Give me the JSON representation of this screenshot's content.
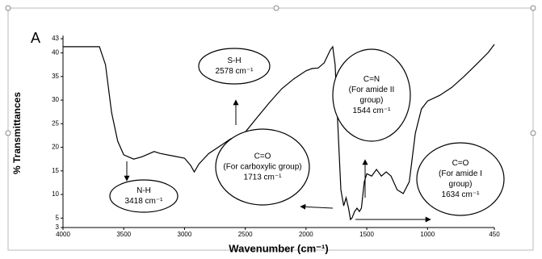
{
  "chart_data": {
    "type": "line",
    "panel_label": "A",
    "ylabel": "% Transmittances",
    "xlabel": "Wavenumber (cm⁻¹)",
    "xlim": [
      4000,
      450
    ],
    "ylim": [
      3,
      43
    ],
    "xticks": [
      4000,
      3500,
      3000,
      2500,
      2000,
      1500,
      1000,
      450
    ],
    "yticks": [
      3,
      5,
      10,
      15,
      20,
      25,
      30,
      35,
      40,
      43
    ],
    "color": "#000000",
    "x": [
      4000,
      3700,
      3650,
      3600,
      3550,
      3500,
      3418,
      3350,
      3250,
      3200,
      3100,
      3000,
      2950,
      2920,
      2880,
      2800,
      2700,
      2620,
      2578,
      2550,
      2500,
      2400,
      2300,
      2200,
      2100,
      2000,
      1950,
      1900,
      1850,
      1800,
      1780,
      1760,
      1740,
      1713,
      1690,
      1670,
      1650,
      1634,
      1620,
      1600,
      1580,
      1560,
      1544,
      1520,
      1500,
      1460,
      1420,
      1380,
      1340,
      1300,
      1250,
      1200,
      1150,
      1100,
      1050,
      1000,
      900,
      800,
      700,
      600,
      500,
      450
    ],
    "values": [
      41.3,
      41.3,
      37.5,
      27.3,
      21.3,
      18.4,
      17.5,
      18.0,
      19.1,
      18.7,
      18.2,
      17.7,
      16.2,
      14.8,
      16.5,
      18.7,
      20.4,
      21.8,
      22.1,
      21.8,
      23.2,
      26.4,
      29.5,
      32.4,
      34.5,
      36.2,
      36.7,
      36.8,
      37.9,
      40.6,
      41.3,
      37.5,
      25.6,
      11.0,
      7.6,
      9.3,
      7.1,
      4.7,
      5.1,
      6.4,
      7.1,
      6.4,
      7.1,
      12.7,
      14.4,
      13.9,
      15.3,
      13.9,
      14.8,
      13.9,
      11.0,
      10.2,
      12.7,
      23.0,
      28.1,
      29.8,
      31.0,
      32.7,
      35.0,
      37.5,
      40.1,
      41.8
    ],
    "annotations": [
      {
        "lines": [
          "N-H",
          "3418 cm⁻¹"
        ]
      },
      {
        "lines": [
          "S-H",
          "2578 cm⁻¹"
        ]
      },
      {
        "lines": [
          "C=O",
          "(For carboxylic group)",
          "1713 cm⁻¹"
        ]
      },
      {
        "lines": [
          "C=N",
          "(For amide II",
          "group)",
          "1544 cm⁻¹"
        ]
      },
      {
        "lines": [
          "C=O",
          "(For amide I",
          "group)",
          "1634 cm⁻¹"
        ]
      }
    ]
  }
}
